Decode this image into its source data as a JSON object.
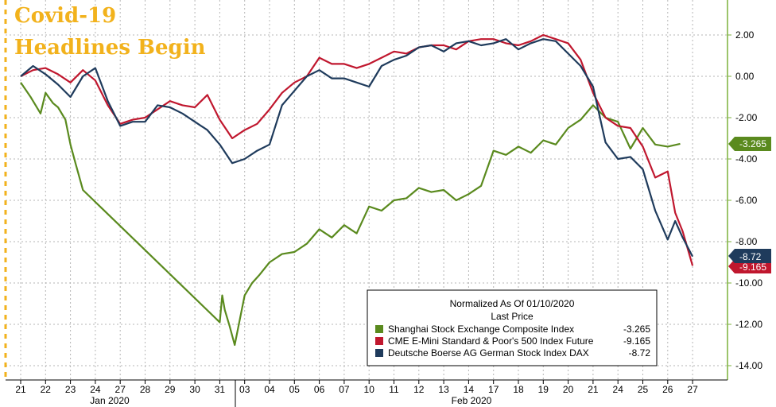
{
  "chart_data": {
    "type": "line",
    "title_lines": [
      "Covid-19",
      "Headlines Begin"
    ],
    "xlabel": "",
    "ylabel": "",
    "x_ticks": [
      "21",
      "22",
      "23",
      "24",
      "27",
      "28",
      "29",
      "30",
      "31",
      "03",
      "04",
      "05",
      "06",
      "07",
      "10",
      "11",
      "12",
      "13",
      "14",
      "17",
      "18",
      "19",
      "20",
      "21",
      "24",
      "25",
      "26",
      "27"
    ],
    "month_labels": [
      "Jan 2020",
      "Feb 2020"
    ],
    "y_ticks": [
      "2.00",
      "0.00",
      "-2.00",
      "-4.00",
      "-6.00",
      "-8.00",
      "-10.00",
      "-12.00",
      "-14.00"
    ],
    "ylim": [
      -14.8,
      3.6
    ],
    "grid": true,
    "legend": {
      "placement": "bottom-right",
      "header_lines": [
        "Normalized As Of 01/10/2020",
        "Last Price"
      ],
      "entries": [
        {
          "name": "Shanghai Stock Exchange Composite Index",
          "value": "-3.265",
          "color": "#5a8a1e"
        },
        {
          "name": "CME E-Mini Standard & Poor's 500 Index Future",
          "value": "-9.165",
          "color": "#c0172e"
        },
        {
          "name": "Deutsche Boerse AG German Stock Index DAX",
          "value": "-8.72",
          "color": "#1f3b5c"
        }
      ]
    },
    "last_value_labels": [
      {
        "text": "-3.265",
        "color": "#5a8a1e"
      },
      {
        "text": "-8.72",
        "color": "#1f3b5c"
      },
      {
        "text": "-9.165",
        "color": "#c0172e"
      }
    ],
    "series": [
      {
        "name": "Shanghai Stock Exchange Composite Index",
        "color": "#5a8a1e",
        "x": [
          "21",
          "21.4",
          "21.8",
          "22",
          "22.3",
          "22.5",
          "22.8",
          "23",
          "23.2",
          "23.5",
          "31",
          "31.1",
          "31.2",
          "31.4",
          "31.6",
          "03",
          "03.3",
          "03.6",
          "04",
          "04.5",
          "05",
          "05.5",
          "06",
          "06.5",
          "07",
          "07.5",
          "10",
          "10.5",
          "11",
          "11.5",
          "12",
          "12.5",
          "13",
          "13.5",
          "14",
          "14.5",
          "17",
          "17.5",
          "18",
          "18.5",
          "19",
          "19.5",
          "20",
          "20.5",
          "21",
          "21.5",
          "24",
          "24.5",
          "25",
          "25.5",
          "26",
          "26.5"
        ],
        "values": [
          -0.3,
          -1.0,
          -1.8,
          -0.8,
          -1.3,
          -1.5,
          -2.1,
          -3.3,
          -4.2,
          -5.5,
          -11.9,
          -10.6,
          -11.3,
          -12.1,
          -13.0,
          -10.6,
          -10.0,
          -9.6,
          -9.0,
          -8.6,
          -8.5,
          -8.1,
          -7.4,
          -7.8,
          -7.2,
          -7.6,
          -6.3,
          -6.5,
          -6.0,
          -5.9,
          -5.4,
          -5.6,
          -5.5,
          -6.0,
          -5.7,
          -5.3,
          -3.6,
          -3.8,
          -3.4,
          -3.7,
          -3.1,
          -3.3,
          -2.5,
          -2.1,
          -1.4,
          -2.0,
          -2.2,
          -3.5,
          -2.5,
          -3.3,
          -3.4,
          -3.265
        ]
      },
      {
        "name": "CME E-Mini Standard & Poor's 500 Index Future",
        "color": "#c0172e",
        "x": [
          "21",
          "21.5",
          "22",
          "22.5",
          "23",
          "23.5",
          "24",
          "24.5",
          "27",
          "27.5",
          "28",
          "28.5",
          "29",
          "29.5",
          "30",
          "30.5",
          "31",
          "31.5",
          "03",
          "03.5",
          "04",
          "04.5",
          "05",
          "05.5",
          "06",
          "06.5",
          "07",
          "07.5",
          "10",
          "10.5",
          "11",
          "11.5",
          "12",
          "12.5",
          "13",
          "13.5",
          "14",
          "14.5",
          "17",
          "17.5",
          "18",
          "18.5",
          "19",
          "19.5",
          "20",
          "20.5",
          "21",
          "21.5",
          "24",
          "24.5",
          "25",
          "25.5",
          "26",
          "26.3",
          "26.6",
          "27"
        ],
        "values": [
          0.0,
          0.3,
          0.4,
          0.1,
          -0.3,
          0.3,
          -0.2,
          -1.4,
          -2.3,
          -2.1,
          -2.0,
          -1.6,
          -1.2,
          -1.4,
          -1.5,
          -0.9,
          -2.1,
          -3.0,
          -2.6,
          -2.3,
          -1.6,
          -0.8,
          -0.3,
          0.0,
          0.9,
          0.6,
          0.6,
          0.4,
          0.6,
          0.9,
          1.2,
          1.1,
          1.4,
          1.5,
          1.5,
          1.3,
          1.7,
          1.8,
          1.8,
          1.6,
          1.5,
          1.7,
          2.0,
          1.8,
          1.6,
          0.8,
          -0.8,
          -2.0,
          -2.4,
          -2.5,
          -3.4,
          -4.9,
          -4.6,
          -6.6,
          -7.5,
          -9.165
        ]
      },
      {
        "name": "Deutsche Boerse AG German Stock Index DAX",
        "color": "#1f3b5c",
        "x": [
          "21",
          "21.5",
          "22",
          "22.5",
          "23",
          "23.5",
          "24",
          "24.5",
          "27",
          "27.5",
          "28",
          "28.5",
          "29",
          "29.5",
          "30",
          "30.5",
          "31",
          "31.5",
          "03",
          "03.5",
          "04",
          "04.5",
          "05",
          "05.5",
          "06",
          "06.5",
          "07",
          "07.5",
          "10",
          "10.5",
          "11",
          "11.5",
          "12",
          "12.5",
          "13",
          "13.5",
          "14",
          "14.5",
          "17",
          "17.5",
          "18",
          "18.5",
          "19",
          "19.5",
          "20",
          "20.5",
          "21",
          "21.5",
          "24",
          "24.5",
          "25",
          "25.5",
          "26",
          "26.3",
          "26.6",
          "27"
        ],
        "values": [
          0.0,
          0.5,
          0.1,
          -0.4,
          -1.0,
          0.0,
          0.4,
          -1.2,
          -2.4,
          -2.2,
          -2.2,
          -1.4,
          -1.5,
          -1.8,
          -2.2,
          -2.6,
          -3.3,
          -4.2,
          -4.0,
          -3.6,
          -3.3,
          -1.4,
          -0.7,
          0.0,
          0.3,
          -0.1,
          -0.1,
          -0.3,
          -0.5,
          0.5,
          0.8,
          1.0,
          1.4,
          1.5,
          1.2,
          1.6,
          1.7,
          1.5,
          1.6,
          1.8,
          1.3,
          1.6,
          1.8,
          1.7,
          1.1,
          0.5,
          -0.5,
          -3.2,
          -4.0,
          -3.9,
          -4.5,
          -6.5,
          -7.9,
          -7.0,
          -7.8,
          -8.72
        ]
      }
    ]
  }
}
